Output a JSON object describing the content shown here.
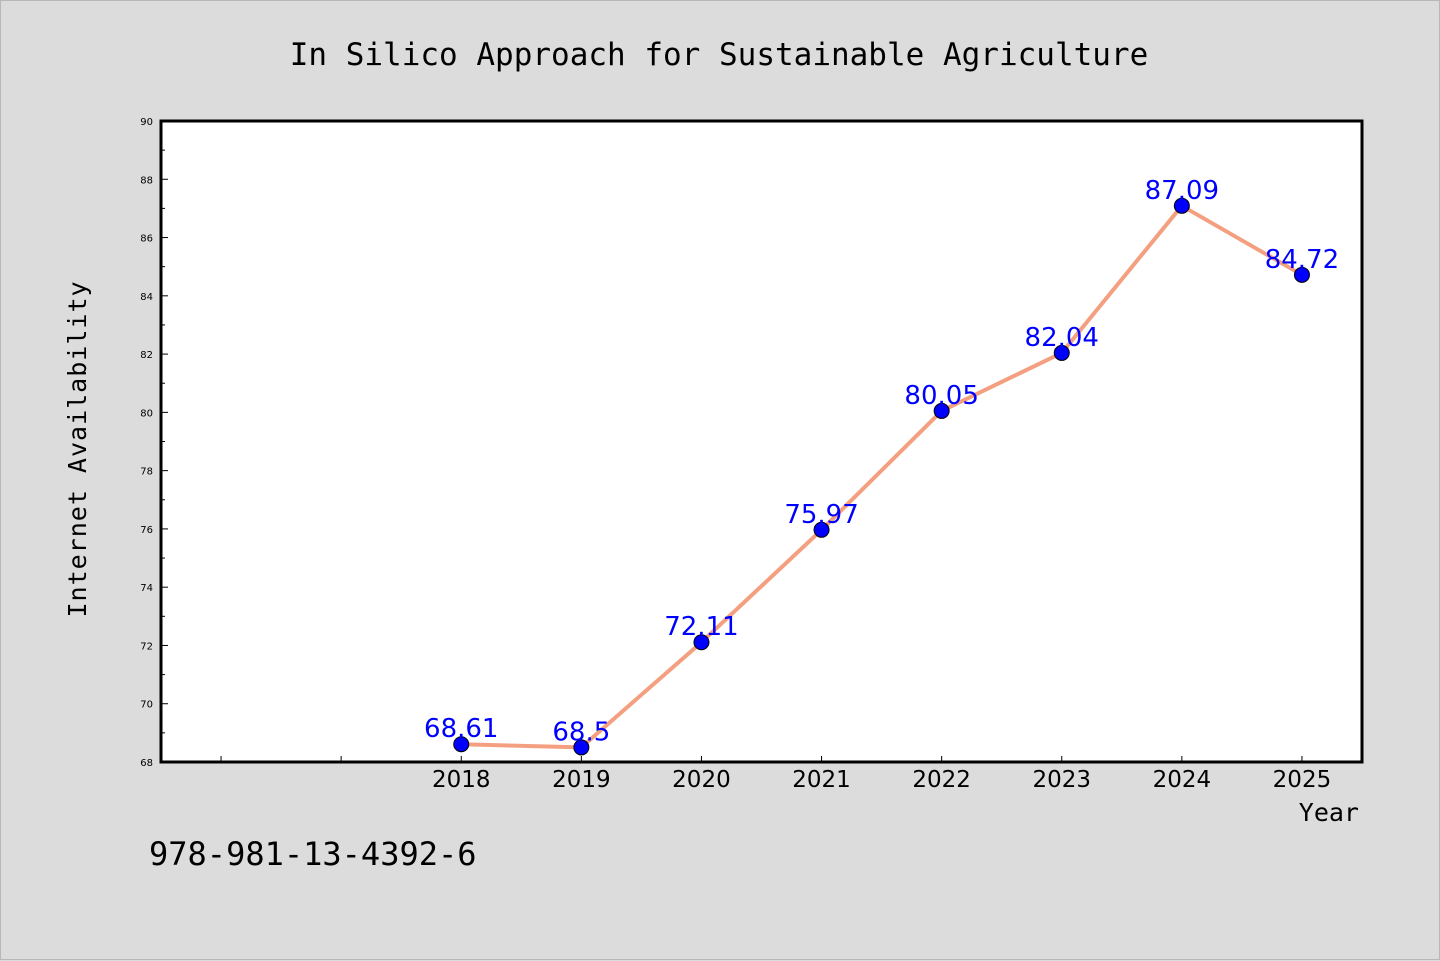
{
  "chart_data": {
    "type": "line",
    "title": "In Silico Approach for Sustainable Agriculture",
    "xlabel": "Year",
    "ylabel": "Internet Availability",
    "x": [
      2018,
      2019,
      2020,
      2021,
      2022,
      2023,
      2024,
      2025
    ],
    "x_tick_labels": [
      "2018",
      "2019",
      "2020",
      "2021",
      "2022",
      "2023",
      "2024",
      "2025"
    ],
    "series": [
      {
        "values": [
          68.61,
          68.5,
          72.11,
          75.97,
          80.05,
          82.04,
          87.09,
          84.72
        ]
      }
    ],
    "data_labels": [
      "68.61",
      "68.5",
      "72.11",
      "75.97",
      "80.05",
      "82.04",
      "87.09",
      "84.72"
    ],
    "xlim": [
      2015.5,
      2025.5
    ],
    "ylim": [
      68,
      90
    ],
    "y_ticks": [
      "68",
      "70",
      "72",
      "74",
      "76",
      "78",
      "80",
      "82",
      "84",
      "86",
      "88",
      "90"
    ],
    "grid": false,
    "line_color": "#f4a080",
    "marker_color": "#0000ff",
    "label_color": "#0000ff"
  },
  "footer": {
    "isbn": "978-981-13-4392-6"
  }
}
